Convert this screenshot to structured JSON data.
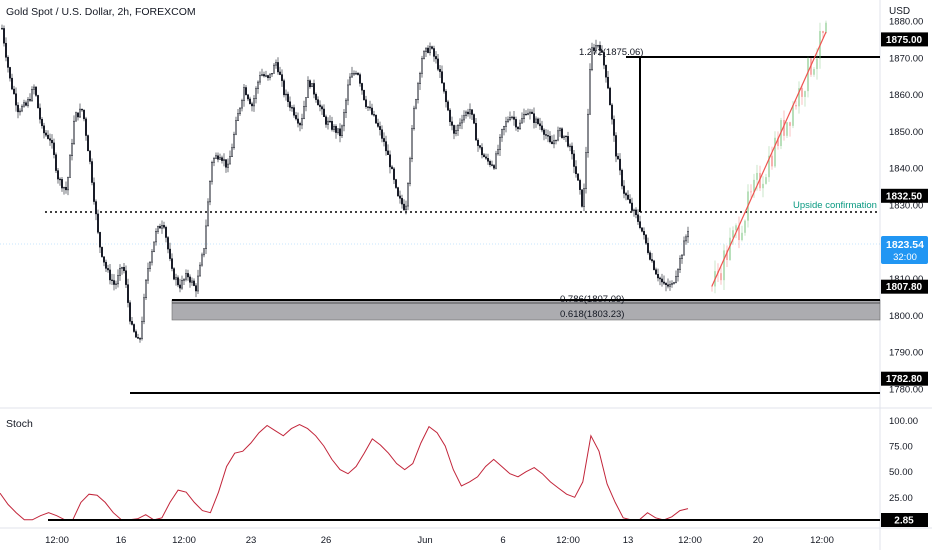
{
  "header": {
    "symbol_title": "Gold Spot / U.S. Dollar, 2h, FOREXCOM",
    "currency": "USD"
  },
  "price_axis": {
    "ticks": [
      "1880.00",
      "1870.00",
      "1860.00",
      "1850.00",
      "1840.00",
      "1830.00",
      "1810.00",
      "1800.00",
      "1790.00",
      "1780.00"
    ],
    "tick_values": [
      1880,
      1870,
      1860,
      1850,
      1840,
      1830,
      1810,
      1800,
      1790,
      1780
    ]
  },
  "time_axis": {
    "labels": [
      "12:00",
      "16",
      "12:00",
      "23",
      "26",
      "Jun",
      "6",
      "12:00",
      "13",
      "12:00",
      "20",
      "12:00"
    ]
  },
  "price_labels": [
    {
      "text": "1875.00",
      "value": 1875.0,
      "style": "black"
    },
    {
      "text": "1832.50",
      "value": 1832.5,
      "style": "black"
    },
    {
      "text": "1807.80",
      "value": 1807.8,
      "style": "black"
    },
    {
      "text": "1782.80",
      "value": 1782.8,
      "style": "black"
    }
  ],
  "last_price": {
    "price": "1823.54",
    "countdown": "32:00",
    "value": 1823.54,
    "color": "#2196f3"
  },
  "annotations": {
    "ext_label": "1.272(1875.06)",
    "fib786_label": "0.786(1807.09)",
    "fib618_label": "0.618(1803.23)",
    "upside_label": "Upside confirmation"
  },
  "stoch_panel": {
    "title": "Stoch",
    "ticks": [
      "100.00",
      "75.00",
      "50.00",
      "25.00"
    ],
    "tick_values": [
      100,
      75,
      50,
      25
    ],
    "level_label": "2.85",
    "level_value": 2.85,
    "line_color": "#c2253a"
  },
  "colors": {
    "up": "#26a69a",
    "down": "#131722",
    "candle": "#131722",
    "zone": "#9e9ea3",
    "projection_up": "#66bb6a",
    "projection_down": "#ef5350"
  },
  "chart_data": {
    "type": "candlestick",
    "title": "Gold Spot / U.S. Dollar, 2h, FOREXCOM",
    "y_unit": "USD",
    "ylim": [
      1778,
      1884
    ],
    "path": [
      1878,
      1864,
      1856,
      1857,
      1862,
      1850,
      1848,
      1837,
      1834,
      1854,
      1856,
      1840,
      1820,
      1812,
      1808,
      1814,
      1797,
      1792,
      1812,
      1822,
      1826,
      1812,
      1808,
      1811,
      1807,
      1818,
      1842,
      1844,
      1840,
      1852,
      1862,
      1857,
      1866,
      1864,
      1869,
      1860,
      1856,
      1852,
      1864,
      1859,
      1853,
      1851,
      1849,
      1864,
      1867,
      1858,
      1854,
      1849,
      1842,
      1832,
      1829,
      1855,
      1870,
      1873,
      1868,
      1858,
      1849,
      1854,
      1856,
      1846,
      1842,
      1841,
      1850,
      1855,
      1851,
      1856,
      1853,
      1851,
      1846,
      1850,
      1848,
      1840,
      1829,
      1872,
      1874,
      1864,
      1845,
      1834,
      1829,
      1825,
      1818,
      1812,
      1808,
      1808,
      1815,
      1823.5
    ],
    "projection": {
      "from": 1808,
      "to": 1877
    },
    "horizontal_levels": [
      1875.0,
      1832.5,
      1807.8,
      1782.8
    ],
    "fib_zone": [
      1803.23,
      1807.09
    ],
    "stochastic": {
      "ylim": [
        0,
        100
      ],
      "values": [
        29,
        18,
        10,
        3,
        3,
        7,
        10,
        7,
        3,
        3,
        20,
        28,
        27,
        20,
        10,
        3,
        3,
        4,
        8,
        3,
        5,
        20,
        32,
        30,
        20,
        12,
        10,
        30,
        55,
        68,
        70,
        78,
        88,
        95,
        90,
        85,
        92,
        96,
        92,
        85,
        75,
        62,
        52,
        48,
        55,
        68,
        82,
        76,
        68,
        58,
        52,
        58,
        78,
        94,
        88,
        75,
        52,
        36,
        40,
        45,
        55,
        62,
        55,
        48,
        45,
        50,
        54,
        48,
        40,
        34,
        28,
        25,
        40,
        85,
        70,
        38,
        20,
        5,
        3,
        3,
        10,
        5,
        2.85,
        6,
        12,
        14
      ]
    }
  }
}
